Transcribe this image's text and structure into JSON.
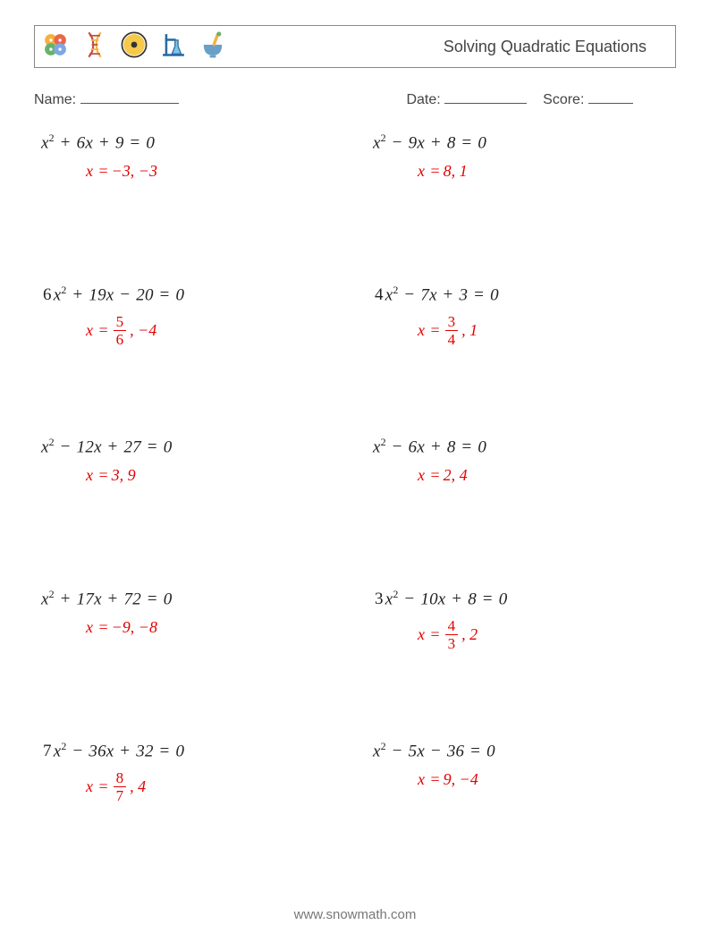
{
  "title": "Solving Quadratic Equations",
  "meta": {
    "name_label": "Name:",
    "date_label": "Date:",
    "score_label": "Score:",
    "name_blank_width": 110,
    "date_blank_width": 92,
    "score_blank_width": 50
  },
  "colors": {
    "page_bg": "#ffffff",
    "text": "#333333",
    "border": "#888888",
    "answer": "#e40000",
    "footer": "#777777"
  },
  "fontsizes": {
    "title": 18,
    "meta": 16,
    "equation": 19,
    "answer": 18,
    "footer": 15
  },
  "icons": [
    {
      "name": "molecule-icon",
      "colors": [
        "#f6b042",
        "#e8674b",
        "#67b36b",
        "#7fa7e6"
      ]
    },
    {
      "name": "dna-icon",
      "colors": [
        "#f6b042",
        "#c44c3d"
      ]
    },
    {
      "name": "radiation-icon",
      "colors": [
        "#f6c94a",
        "#333333"
      ]
    },
    {
      "name": "flask-stand-icon",
      "colors": [
        "#2b6aa0",
        "#7fc5e8"
      ]
    },
    {
      "name": "mortar-icon",
      "colors": [
        "#f6b042",
        "#6aa0c7"
      ]
    }
  ],
  "problems": [
    {
      "coef": "",
      "b_sign": "+",
      "b": "6",
      "c_sign": "+",
      "c": "9",
      "ans_prefix": "x = ",
      "ans": "−3, −3",
      "has_frac": false
    },
    {
      "coef": "",
      "b_sign": "−",
      "b": "9",
      "c_sign": "+",
      "c": "8",
      "ans_prefix": "x = ",
      "ans": "8, 1",
      "has_frac": false
    },
    {
      "coef": "6",
      "b_sign": "+",
      "b": "19",
      "c_sign": "−",
      "c": "20",
      "ans_prefix": "x = ",
      "ans": ", −4",
      "has_frac": true,
      "frac_n": "5",
      "frac_d": "6",
      "frac_pos": "before"
    },
    {
      "coef": "4",
      "b_sign": "−",
      "b": "7",
      "c_sign": "+",
      "c": "3",
      "ans_prefix": "x = ",
      "ans": ", 1",
      "has_frac": true,
      "frac_n": "3",
      "frac_d": "4",
      "frac_pos": "before"
    },
    {
      "coef": "",
      "b_sign": "−",
      "b": "12",
      "c_sign": "+",
      "c": "27",
      "ans_prefix": "x = ",
      "ans": "3, 9",
      "has_frac": false
    },
    {
      "coef": "",
      "b_sign": "−",
      "b": "6",
      "c_sign": "+",
      "c": "8",
      "ans_prefix": "x = ",
      "ans": "2, 4",
      "has_frac": false
    },
    {
      "coef": "",
      "b_sign": "+",
      "b": "17",
      "c_sign": "+",
      "c": "72",
      "ans_prefix": "x = ",
      "ans": "−9, −8",
      "has_frac": false
    },
    {
      "coef": "3",
      "b_sign": "−",
      "b": "10",
      "c_sign": "+",
      "c": "8",
      "ans_prefix": "x = ",
      "ans": ", 2",
      "has_frac": true,
      "frac_n": "4",
      "frac_d": "3",
      "frac_pos": "before"
    },
    {
      "coef": "7",
      "b_sign": "−",
      "b": "36",
      "c_sign": "+",
      "c": "32",
      "ans_prefix": "x = ",
      "ans": ", 4",
      "has_frac": true,
      "frac_n": "8",
      "frac_d": "7",
      "frac_pos": "before"
    },
    {
      "coef": "",
      "b_sign": "−",
      "b": "5",
      "c_sign": "−",
      "c": "36",
      "ans_prefix": "x = ",
      "ans": "9, −4",
      "has_frac": false
    }
  ],
  "footer": "www.snowmath.com"
}
